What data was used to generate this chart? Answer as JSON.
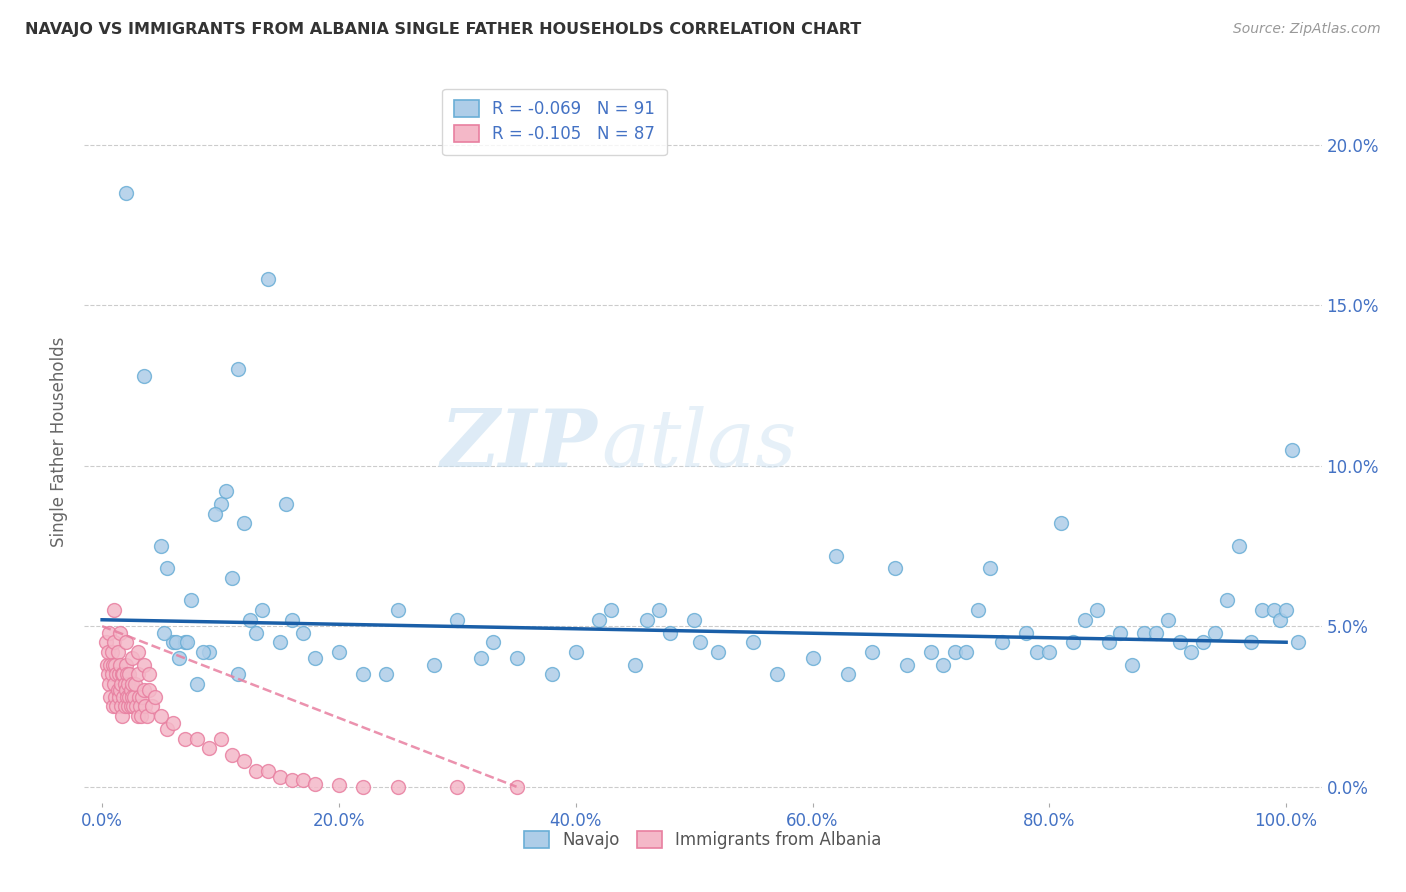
{
  "title": "NAVAJO VS IMMIGRANTS FROM ALBANIA SINGLE FATHER HOUSEHOLDS CORRELATION CHART",
  "source": "Source: ZipAtlas.com",
  "xlabel_vals": [
    0,
    20,
    40,
    60,
    80,
    100
  ],
  "ylabel": "Single Father Households",
  "ylabel_vals": [
    0,
    5,
    10,
    15,
    20
  ],
  "xlim": [
    -1.5,
    103
  ],
  "ylim": [
    -0.5,
    22
  ],
  "navajo_R": -0.069,
  "navajo_N": 91,
  "albania_R": -0.105,
  "albania_N": 87,
  "navajo_color": "#aecde8",
  "navajo_edge": "#6aaed6",
  "albania_color": "#f4b8c8",
  "albania_edge": "#e87fa0",
  "trend_navajo_color": "#1a5fa8",
  "trend_albania_color": "#e87fa0",
  "watermark_zip": "ZIP",
  "watermark_atlas": "atlas",
  "grid_color": "#cccccc",
  "bg_color": "#ffffff",
  "marker_size": 100,
  "navajo_x": [
    2.0,
    3.5,
    5.0,
    5.5,
    6.0,
    6.5,
    7.0,
    7.5,
    8.0,
    9.0,
    10.0,
    11.0,
    11.5,
    12.0,
    12.5,
    13.0,
    14.0,
    15.0,
    16.0,
    17.0,
    18.0,
    20.0,
    22.0,
    25.0,
    28.0,
    30.0,
    33.0,
    35.0,
    38.0,
    40.0,
    42.0,
    45.0,
    47.0,
    50.0,
    52.0,
    55.0,
    57.0,
    60.0,
    62.0,
    63.0,
    65.0,
    67.0,
    68.0,
    70.0,
    71.0,
    72.0,
    73.0,
    75.0,
    76.0,
    78.0,
    79.0,
    80.0,
    81.0,
    82.0,
    83.0,
    84.0,
    85.0,
    86.0,
    87.0,
    88.0,
    89.0,
    90.0,
    91.0,
    92.0,
    93.0,
    94.0,
    95.0,
    96.0,
    97.0,
    98.0,
    99.0,
    99.5,
    100.0,
    100.5,
    101.0,
    5.2,
    6.2,
    7.2,
    8.5,
    9.5,
    10.5,
    11.5,
    13.5,
    15.5,
    24.0,
    32.0,
    43.0,
    46.0,
    48.0,
    50.5,
    74.0
  ],
  "navajo_y": [
    18.5,
    12.8,
    7.5,
    6.8,
    4.5,
    4.0,
    4.5,
    5.8,
    3.2,
    4.2,
    8.8,
    6.5,
    3.5,
    8.2,
    5.2,
    4.8,
    15.8,
    4.5,
    5.2,
    4.8,
    4.0,
    4.2,
    3.5,
    5.5,
    3.8,
    5.2,
    4.5,
    4.0,
    3.5,
    4.2,
    5.2,
    3.8,
    5.5,
    5.2,
    4.2,
    4.5,
    3.5,
    4.0,
    7.2,
    3.5,
    4.2,
    6.8,
    3.8,
    4.2,
    3.8,
    4.2,
    4.2,
    6.8,
    4.5,
    4.8,
    4.2,
    4.2,
    8.2,
    4.5,
    5.2,
    5.5,
    4.5,
    4.8,
    3.8,
    4.8,
    4.8,
    5.2,
    4.5,
    4.2,
    4.5,
    4.8,
    5.8,
    7.5,
    4.5,
    5.5,
    5.5,
    5.2,
    5.5,
    10.5,
    4.5,
    4.8,
    4.5,
    4.5,
    4.2,
    8.5,
    9.2,
    13.0,
    5.5,
    8.8,
    3.5,
    4.0,
    5.5,
    5.2,
    4.8,
    4.5,
    5.5
  ],
  "albania_x": [
    0.3,
    0.4,
    0.5,
    0.5,
    0.6,
    0.6,
    0.7,
    0.7,
    0.8,
    0.8,
    0.9,
    0.9,
    1.0,
    1.0,
    1.1,
    1.1,
    1.2,
    1.2,
    1.3,
    1.3,
    1.4,
    1.4,
    1.5,
    1.5,
    1.6,
    1.6,
    1.7,
    1.7,
    1.8,
    1.8,
    1.9,
    1.9,
    2.0,
    2.0,
    2.1,
    2.1,
    2.2,
    2.2,
    2.3,
    2.3,
    2.4,
    2.4,
    2.5,
    2.5,
    2.6,
    2.7,
    2.8,
    2.9,
    3.0,
    3.0,
    3.1,
    3.2,
    3.3,
    3.4,
    3.5,
    3.6,
    3.8,
    4.0,
    4.2,
    4.5,
    5.0,
    5.5,
    6.0,
    7.0,
    8.0,
    9.0,
    10.0,
    11.0,
    12.0,
    13.0,
    14.0,
    15.0,
    16.0,
    17.0,
    18.0,
    20.0,
    22.0,
    25.0,
    30.0,
    35.0,
    1.0,
    1.5,
    2.0,
    2.5,
    3.0,
    3.5,
    4.0
  ],
  "albania_y": [
    4.5,
    3.8,
    4.2,
    3.5,
    4.8,
    3.2,
    3.8,
    2.8,
    4.2,
    3.5,
    3.8,
    2.5,
    4.5,
    3.2,
    3.8,
    2.8,
    3.5,
    2.5,
    4.2,
    3.0,
    3.5,
    2.8,
    3.8,
    3.0,
    3.2,
    2.5,
    3.5,
    2.2,
    3.5,
    2.8,
    3.2,
    2.5,
    3.8,
    3.0,
    3.5,
    2.8,
    3.2,
    2.5,
    3.5,
    2.8,
    3.0,
    2.5,
    3.2,
    2.8,
    2.5,
    2.8,
    3.2,
    2.5,
    3.5,
    2.2,
    2.8,
    2.5,
    2.2,
    2.8,
    3.0,
    2.5,
    2.2,
    3.0,
    2.5,
    2.8,
    2.2,
    1.8,
    2.0,
    1.5,
    1.5,
    1.2,
    1.5,
    1.0,
    0.8,
    0.5,
    0.5,
    0.3,
    0.2,
    0.2,
    0.1,
    0.05,
    0.0,
    0.0,
    0.0,
    0.0,
    5.5,
    4.8,
    4.5,
    4.0,
    4.2,
    3.8,
    3.5
  ]
}
